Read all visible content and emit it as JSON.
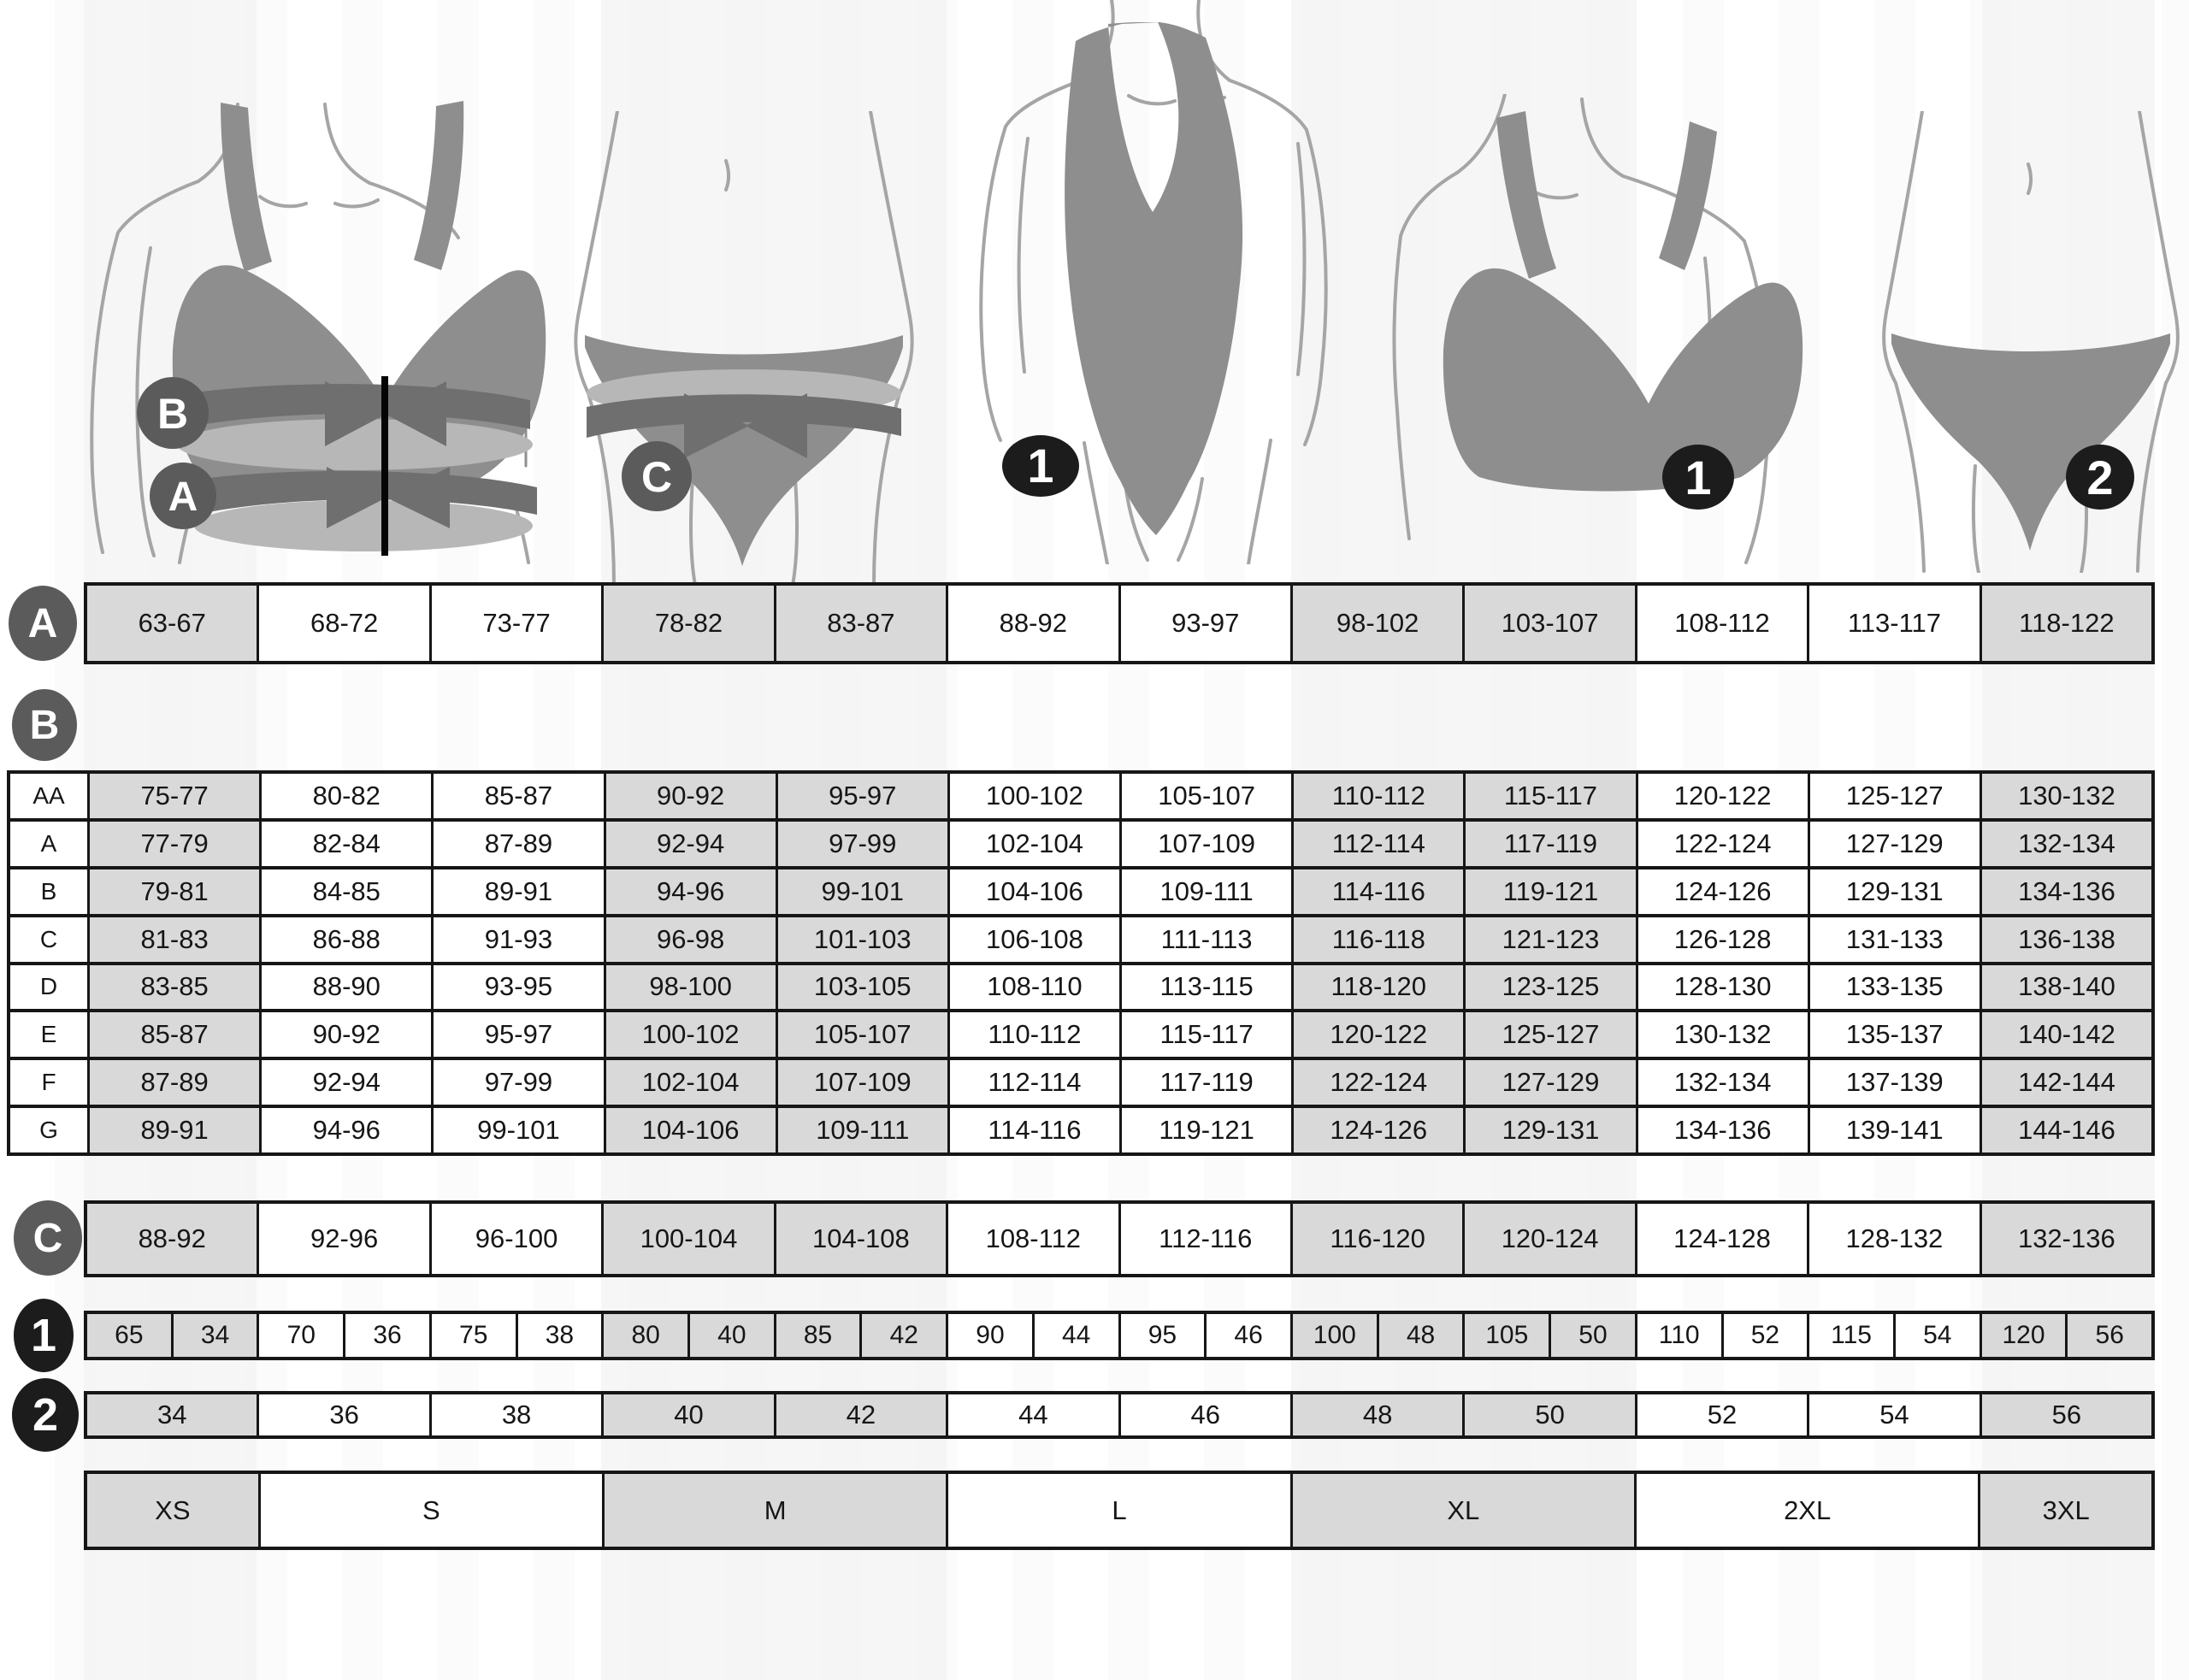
{
  "markers": {
    "a": "A",
    "b": "B",
    "c": "C",
    "one": "1",
    "two": "2"
  },
  "colors": {
    "cell_shaded": "#d9d9d9",
    "table_border": "#161616",
    "letter_circle": "#5b5b5b",
    "number_circle": "#1c1c1c",
    "garment_gray": "#8e8e8e",
    "tape_dark": "#6f6f6f",
    "tape_light": "#b7b7b7",
    "body_outline": "#a5a5a5",
    "background_stripe": "#f4f4f4"
  },
  "chart_data": {
    "type": "table",
    "columns": 12,
    "shaded_columns": [
      0,
      3,
      4,
      7,
      8,
      11
    ],
    "underbust_row": {
      "label": "A",
      "values": [
        "63-67",
        "68-72",
        "73-77",
        "78-82",
        "83-87",
        "88-92",
        "93-97",
        "98-102",
        "103-107",
        "108-112",
        "113-117",
        "118-122"
      ]
    },
    "bust_table": {
      "label": "B",
      "cup_rows": [
        {
          "cup": "AA",
          "values": [
            "75-77",
            "80-82",
            "85-87",
            "90-92",
            "95-97",
            "100-102",
            "105-107",
            "110-112",
            "115-117",
            "120-122",
            "125-127",
            "130-132"
          ]
        },
        {
          "cup": "A",
          "values": [
            "77-79",
            "82-84",
            "87-89",
            "92-94",
            "97-99",
            "102-104",
            "107-109",
            "112-114",
            "117-119",
            "122-124",
            "127-129",
            "132-134"
          ]
        },
        {
          "cup": "B",
          "values": [
            "79-81",
            "84-85",
            "89-91",
            "94-96",
            "99-101",
            "104-106",
            "109-111",
            "114-116",
            "119-121",
            "124-126",
            "129-131",
            "134-136"
          ]
        },
        {
          "cup": "C",
          "values": [
            "81-83",
            "86-88",
            "91-93",
            "96-98",
            "101-103",
            "106-108",
            "111-113",
            "116-118",
            "121-123",
            "126-128",
            "131-133",
            "136-138"
          ]
        },
        {
          "cup": "D",
          "values": [
            "83-85",
            "88-90",
            "93-95",
            "98-100",
            "103-105",
            "108-110",
            "113-115",
            "118-120",
            "123-125",
            "128-130",
            "133-135",
            "138-140"
          ]
        },
        {
          "cup": "E",
          "values": [
            "85-87",
            "90-92",
            "95-97",
            "100-102",
            "105-107",
            "110-112",
            "115-117",
            "120-122",
            "125-127",
            "130-132",
            "135-137",
            "140-142"
          ]
        },
        {
          "cup": "F",
          "values": [
            "87-89",
            "92-94",
            "97-99",
            "102-104",
            "107-109",
            "112-114",
            "117-119",
            "122-124",
            "127-129",
            "132-134",
            "137-139",
            "142-144"
          ]
        },
        {
          "cup": "G",
          "values": [
            "89-91",
            "94-96",
            "99-101",
            "104-106",
            "109-111",
            "114-116",
            "119-121",
            "124-126",
            "129-131",
            "134-136",
            "139-141",
            "144-146"
          ]
        }
      ]
    },
    "hip_row": {
      "label": "C",
      "values": [
        "88-92",
        "92-96",
        "96-100",
        "100-104",
        "104-108",
        "108-112",
        "112-116",
        "116-120",
        "120-124",
        "124-128",
        "128-132",
        "132-136"
      ]
    },
    "bra_size_row": {
      "label": "1",
      "pairs": [
        [
          "65",
          "34"
        ],
        [
          "70",
          "36"
        ],
        [
          "75",
          "38"
        ],
        [
          "80",
          "40"
        ],
        [
          "85",
          "42"
        ],
        [
          "90",
          "44"
        ],
        [
          "95",
          "46"
        ],
        [
          "100",
          "48"
        ],
        [
          "105",
          "50"
        ],
        [
          "110",
          "52"
        ],
        [
          "115",
          "54"
        ],
        [
          "120",
          "56"
        ]
      ]
    },
    "panty_size_row": {
      "label": "2",
      "values": [
        "34",
        "36",
        "38",
        "40",
        "42",
        "44",
        "46",
        "48",
        "50",
        "52",
        "54",
        "56"
      ]
    },
    "size_row": {
      "cells": [
        {
          "label": "XS",
          "span": 1,
          "shaded": true
        },
        {
          "label": "S",
          "span": 2,
          "shaded": false
        },
        {
          "label": "M",
          "span": 2,
          "shaded": true
        },
        {
          "label": "L",
          "span": 2,
          "shaded": false
        },
        {
          "label": "XL",
          "span": 2,
          "shaded": true
        },
        {
          "label": "2XL",
          "span": 2,
          "shaded": false
        },
        {
          "label": "3XL",
          "span": 1,
          "shaded": true
        }
      ]
    }
  }
}
